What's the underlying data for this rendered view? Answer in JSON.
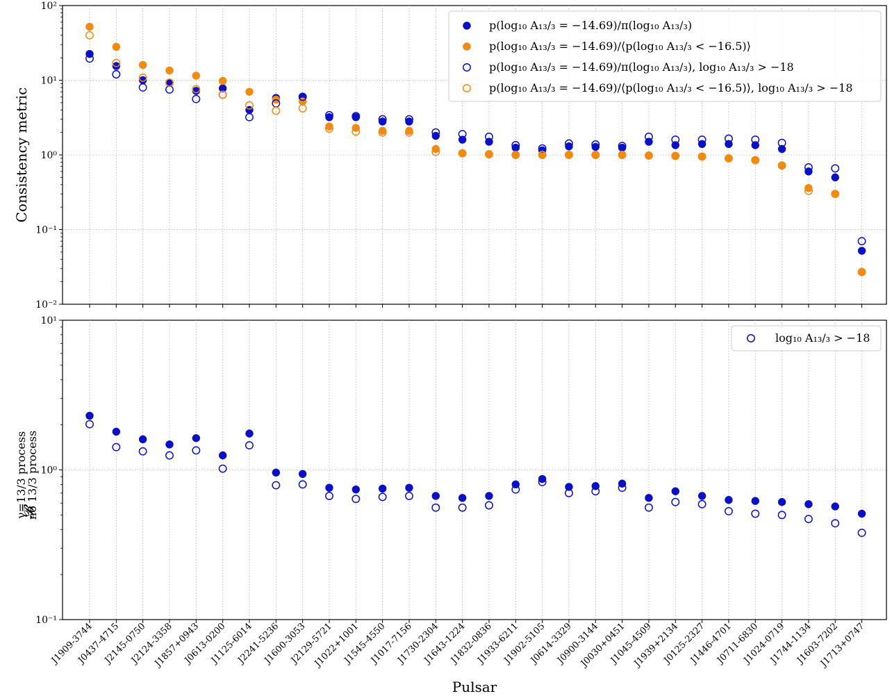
{
  "colors": {
    "blue": "#0a10c8",
    "orange": "#f28a10"
  },
  "pulsars": [
    "J1909-3744",
    "J0437-4715",
    "J2145-0750",
    "J2124-3358",
    "J1857+0943",
    "J0613-0200",
    "J1125-6014",
    "J2241-5236",
    "J1600-3053",
    "J2129-5721",
    "J1022+1001",
    "J1545-4550",
    "J1017-7156",
    "J1730-2304",
    "J1643-1224",
    "J1832-0836",
    "J1933-6211",
    "J1902-5105",
    "J0614-3329",
    "J0900-3144",
    "J0030+0451",
    "J1045-4509",
    "J1939+2134",
    "J0125-2327",
    "J1446-4701",
    "J0711-6830",
    "J1024-0719",
    "J1744-1134",
    "J1603-7202",
    "J1713+0747"
  ],
  "xlabel": "Pulsar",
  "chart_data": [
    {
      "type": "scatter",
      "ylabel": "Consistency metric",
      "yscale": "log",
      "ylim": [
        0.01,
        100
      ],
      "yticks": [
        {
          "value": 0.01,
          "label": "10⁻²"
        },
        {
          "value": 0.1,
          "label": "10⁻¹"
        },
        {
          "value": 1,
          "label": "10⁰"
        },
        {
          "value": 10,
          "label": "10¹"
        },
        {
          "value": 100,
          "label": "10²"
        }
      ],
      "grid": true,
      "legend_position": "top-right",
      "series": [
        {
          "name": "p(log₁₀ A₁₃/₃ = −14.69)/π(log₁₀ A₁₃/₃)",
          "color": "#0a10c8",
          "filled": true,
          "values": [
            22.5,
            15.5,
            10.0,
            9.2,
            7.2,
            7.8,
            4.0,
            5.8,
            5.9,
            3.2,
            3.2,
            2.8,
            2.8,
            1.8,
            1.6,
            1.5,
            1.25,
            1.15,
            1.3,
            1.28,
            1.25,
            1.5,
            1.35,
            1.4,
            1.4,
            1.35,
            1.2,
            0.6,
            0.5,
            0.052
          ]
        },
        {
          "name": "p(log₁₀ A₁₃/₃ = −14.69)/⟨p(log₁₀ A₁₃/₃ < −16.5)⟩",
          "color": "#f28a10",
          "filled": true,
          "values": [
            52,
            28,
            16,
            13.5,
            11.5,
            9.8,
            7.0,
            5.5,
            5.2,
            2.4,
            2.3,
            2.1,
            2.1,
            1.2,
            1.05,
            1.02,
            1.0,
            1.0,
            1.0,
            1.0,
            1.0,
            0.98,
            0.97,
            0.95,
            0.9,
            0.85,
            0.72,
            0.36,
            0.3,
            0.027
          ]
        },
        {
          "name": "p(log₁₀ A₁₃/₃ = −14.69)/π(log₁₀ A₁₃/₃), log₁₀ A₁₃/₃ > −18",
          "color": "#0a10c8",
          "filled": false,
          "values": [
            19.5,
            12.0,
            8.0,
            7.5,
            5.6,
            6.4,
            3.2,
            4.9,
            6.0,
            3.4,
            3.3,
            3.0,
            3.0,
            2.0,
            1.9,
            1.75,
            1.35,
            1.22,
            1.42,
            1.38,
            1.32,
            1.75,
            1.6,
            1.6,
            1.65,
            1.6,
            1.45,
            0.68,
            0.66,
            0.07
          ]
        },
        {
          "name": "p(log₁₀ A₁₃/₃ = −14.69)/⟨p(log₁₀ A₁₃/₃ < −16.5)⟩, log₁₀ A₁₃/₃ > −18",
          "color": "#f28a10",
          "filled": false,
          "values": [
            40,
            17,
            10.8,
            9.3,
            7.6,
            6.4,
            4.6,
            3.9,
            4.2,
            2.25,
            2.05,
            2.0,
            2.0,
            1.1,
            1.05,
            1.02,
            1.0,
            1.0,
            1.0,
            1.0,
            1.0,
            0.98,
            0.97,
            0.95,
            0.9,
            0.85,
            0.72,
            0.33,
            0.3,
            0.027
          ]
        }
      ]
    },
    {
      "type": "scatter",
      "ylabel": "ℬᵞ⁼¹³⁄³ ᵖʳᵒᶜᵉˢˢ ₙₒ ₁₃/₃ ₚᵣₒᶜₑₛₛ",
      "yscale": "log",
      "ylim": [
        0.1,
        10
      ],
      "yticks": [
        {
          "value": 0.1,
          "label": "10⁻¹"
        },
        {
          "value": 1,
          "label": "10⁰"
        },
        {
          "value": 10,
          "label": "10¹"
        }
      ],
      "grid": true,
      "legend_position": "top-right",
      "series": [
        {
          "name": "",
          "color": "#0a10c8",
          "filled": true,
          "values": [
            2.3,
            1.8,
            1.6,
            1.48,
            1.63,
            1.25,
            1.75,
            0.96,
            0.94,
            0.76,
            0.74,
            0.75,
            0.76,
            0.67,
            0.65,
            0.67,
            0.8,
            0.87,
            0.77,
            0.78,
            0.81,
            0.65,
            0.72,
            0.67,
            0.63,
            0.62,
            0.61,
            0.59,
            0.57,
            0.51
          ]
        },
        {
          "name": "log₁₀ A₁₃/₃ > −18",
          "color": "#0a10c8",
          "filled": false,
          "values": [
            2.02,
            1.42,
            1.33,
            1.25,
            1.35,
            1.02,
            1.46,
            0.79,
            0.8,
            0.67,
            0.64,
            0.66,
            0.67,
            0.56,
            0.56,
            0.58,
            0.74,
            0.83,
            0.7,
            0.72,
            0.76,
            0.56,
            0.61,
            0.59,
            0.53,
            0.51,
            0.5,
            0.47,
            0.44,
            0.38
          ]
        }
      ]
    }
  ]
}
